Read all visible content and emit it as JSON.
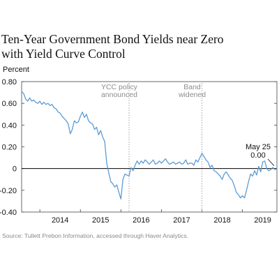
{
  "title_lines": [
    "Ten-Year Government Bond Yields near Zero",
    "with Yield Curve Control"
  ],
  "source": "Source: Tullett Prebon Information, accessed through Haver Analytics.",
  "colors": {
    "line": "#5b9bd5",
    "axis": "#000000",
    "event_line": "#999999",
    "annotation": "#8c8c8c",
    "frame": "#444444"
  },
  "chart_data": {
    "type": "line",
    "title": "Ten-Year Government Bond Yields near Zero with Yield Curve Control",
    "ylabel": "Percent",
    "xlabel": "",
    "ylim": [
      -0.4,
      0.8
    ],
    "xlim": [
      2013.55,
      2019.85
    ],
    "y_ticks": [
      {
        "value": 0.8,
        "label": "0.80"
      },
      {
        "value": 0.6,
        "label": "0.60"
      },
      {
        "value": 0.4,
        "label": "0.40"
      },
      {
        "value": 0.2,
        "label": "0.20"
      },
      {
        "value": 0.0,
        "label": "0"
      },
      {
        "value": -0.2,
        "label": "-0.20"
      },
      {
        "value": -0.4,
        "label": "-0.40"
      }
    ],
    "x_ticks": [
      {
        "value": 2014.0,
        "label": "2014"
      },
      {
        "value": 2015.0,
        "label": "2015"
      },
      {
        "value": 2016.0,
        "label": "2016"
      },
      {
        "value": 2017.0,
        "label": "2017"
      },
      {
        "value": 2018.0,
        "label": "2018"
      },
      {
        "value": 2019.0,
        "label": "2019"
      }
    ],
    "events": [
      {
        "x": 2016.2,
        "label_lines": [
          "YCC policy",
          "announced"
        ]
      },
      {
        "x": 2018.0,
        "label_lines": [
          "Band",
          "widened"
        ]
      }
    ],
    "annotation": {
      "x": 2019.78,
      "y": 0.0,
      "label_lines": [
        "May 25",
        "0.00"
      ]
    },
    "grid": false,
    "legend": "none",
    "series": [
      {
        "x": [
          2013.55,
          2013.6,
          2013.65,
          2013.7,
          2013.75,
          2013.8,
          2013.85,
          2013.9,
          2013.95,
          2014.0,
          2014.05,
          2014.1,
          2014.15,
          2014.2,
          2014.25,
          2014.3,
          2014.35,
          2014.4,
          2014.45,
          2014.5,
          2014.55,
          2014.6,
          2014.65,
          2014.7,
          2014.75,
          2014.8,
          2014.85,
          2014.9,
          2014.95,
          2015.0,
          2015.05,
          2015.1,
          2015.15,
          2015.2,
          2015.25,
          2015.3,
          2015.35,
          2015.4,
          2015.45,
          2015.5,
          2015.55,
          2015.6,
          2015.65,
          2015.7,
          2015.75,
          2015.8,
          2015.85,
          2015.9,
          2015.95,
          2016.0,
          2016.05,
          2016.1,
          2016.15,
          2016.2,
          2016.25,
          2016.3,
          2016.35,
          2016.4,
          2016.45,
          2016.5,
          2016.55,
          2016.6,
          2016.65,
          2016.7,
          2016.75,
          2016.8,
          2016.85,
          2016.9,
          2016.95,
          2017.0,
          2017.05,
          2017.1,
          2017.15,
          2017.2,
          2017.25,
          2017.3,
          2017.35,
          2017.4,
          2017.45,
          2017.5,
          2017.55,
          2017.6,
          2017.65,
          2017.7,
          2017.75,
          2017.8,
          2017.85,
          2017.9,
          2017.95,
          2018.0,
          2018.05,
          2018.1,
          2018.15,
          2018.2,
          2018.25,
          2018.3,
          2018.35,
          2018.4,
          2018.45,
          2018.5,
          2018.55,
          2018.6,
          2018.65,
          2018.7,
          2018.75,
          2018.8,
          2018.85,
          2018.9,
          2018.95,
          2019.0,
          2019.05,
          2019.1,
          2019.15,
          2019.2,
          2019.25,
          2019.3,
          2019.35,
          2019.4,
          2019.45,
          2019.5,
          2019.55,
          2019.6,
          2019.65,
          2019.7,
          2019.75,
          2019.8,
          2019.85
        ],
        "values": [
          0.71,
          0.69,
          0.64,
          0.62,
          0.65,
          0.62,
          0.63,
          0.61,
          0.6,
          0.62,
          0.59,
          0.61,
          0.59,
          0.6,
          0.58,
          0.59,
          0.56,
          0.55,
          0.52,
          0.51,
          0.48,
          0.46,
          0.44,
          0.41,
          0.32,
          0.36,
          0.44,
          0.42,
          0.43,
          0.48,
          0.52,
          0.47,
          0.5,
          0.44,
          0.42,
          0.41,
          0.36,
          0.38,
          0.31,
          0.35,
          0.29,
          0.25,
          0.05,
          -0.04,
          -0.12,
          -0.14,
          -0.17,
          -0.15,
          -0.22,
          -0.28,
          -0.1,
          -0.05,
          -0.06,
          -0.07,
          0.01,
          -0.02,
          0.03,
          0.07,
          0.04,
          0.07,
          0.05,
          0.08,
          0.06,
          0.04,
          0.06,
          0.08,
          0.04,
          0.05,
          0.07,
          0.05,
          0.07,
          0.09,
          0.06,
          0.04,
          0.05,
          0.06,
          0.04,
          0.05,
          0.06,
          0.04,
          0.05,
          0.08,
          0.04,
          0.05,
          0.05,
          0.03,
          0.08,
          0.06,
          0.1,
          0.14,
          0.11,
          0.08,
          0.06,
          0.01,
          0.03,
          -0.02,
          -0.03,
          -0.05,
          -0.07,
          -0.1,
          -0.05,
          -0.03,
          -0.06,
          -0.09,
          -0.11,
          -0.16,
          -0.22,
          -0.24,
          -0.27,
          -0.25,
          -0.27,
          -0.2,
          -0.12,
          -0.05,
          -0.07,
          -0.02,
          -0.06,
          0.02,
          -0.03,
          0.06,
          0.07,
          0.0,
          -0.02,
          -0.01,
          0.01,
          -0.01,
          0.0
        ]
      }
    ]
  }
}
